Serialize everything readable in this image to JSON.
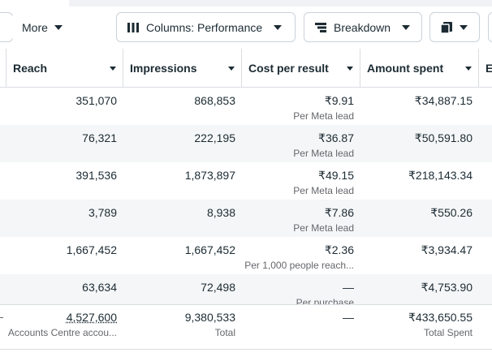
{
  "toolbar": {
    "more": "More",
    "columns": "Columns: Performance",
    "breakdown": "Breakdown"
  },
  "table": {
    "headers": [
      "Reach",
      "Impressions",
      "Cost per result",
      "Amount spent",
      "E"
    ],
    "rows": [
      {
        "reach": "351,070",
        "impressions": "868,853",
        "cost": "₹9.91",
        "cost_note": "Per Meta lead",
        "amount": "₹34,887.15"
      },
      {
        "reach": "76,321",
        "impressions": "222,195",
        "cost": "₹36.87",
        "cost_note": "Per Meta lead",
        "amount": "₹50,591.80"
      },
      {
        "reach": "391,536",
        "impressions": "1,873,897",
        "cost": "₹49.15",
        "cost_note": "Per Meta lead",
        "amount": "₹218,143.34"
      },
      {
        "reach": "3,789",
        "impressions": "8,938",
        "cost": "₹7.86",
        "cost_note": "Per Meta lead",
        "amount": "₹550.26"
      },
      {
        "reach": "1,667,452",
        "impressions": "1,667,452",
        "cost": "₹2.36",
        "cost_note": "Per 1,000 people reach...",
        "amount": "₹3,934.47"
      },
      {
        "reach": "63,634",
        "impressions": "72,498",
        "cost": "—",
        "cost_note": "Per purchase",
        "amount": "₹4,753.90"
      }
    ],
    "totals": {
      "reach": "4,527,600",
      "reach_note": "Accounts Centre accou...",
      "impressions": "9,380,533",
      "impressions_note": "Total",
      "cost": "—",
      "amount": "₹433,650.55",
      "amount_note": "Total Spent"
    }
  }
}
